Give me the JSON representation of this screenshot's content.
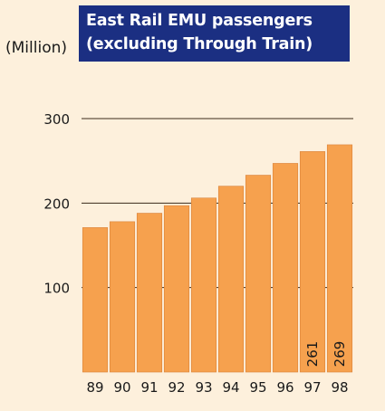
{
  "chart_data": {
    "type": "bar",
    "title_lines": [
      "East Rail EMU passengers",
      "(excluding Through Train)"
    ],
    "unit_label": "(Million)",
    "categories": [
      "89",
      "90",
      "91",
      "92",
      "93",
      "94",
      "95",
      "96",
      "97",
      "98"
    ],
    "values": [
      171,
      178,
      188,
      197,
      206,
      220,
      233,
      247,
      261,
      269
    ],
    "data_labels": [
      null,
      null,
      null,
      null,
      null,
      null,
      null,
      null,
      "261",
      "269"
    ],
    "y_ticks": [
      100,
      200,
      300
    ],
    "ylim": [
      0,
      300
    ],
    "grid": true,
    "colors": {
      "bar": "#f6a14e",
      "bar_edge": "#d9823a",
      "gridline": "#3a2a1a",
      "title_bg": "#1b2f82",
      "title_text": "#ffffff",
      "text": "#1a1a1a"
    }
  }
}
